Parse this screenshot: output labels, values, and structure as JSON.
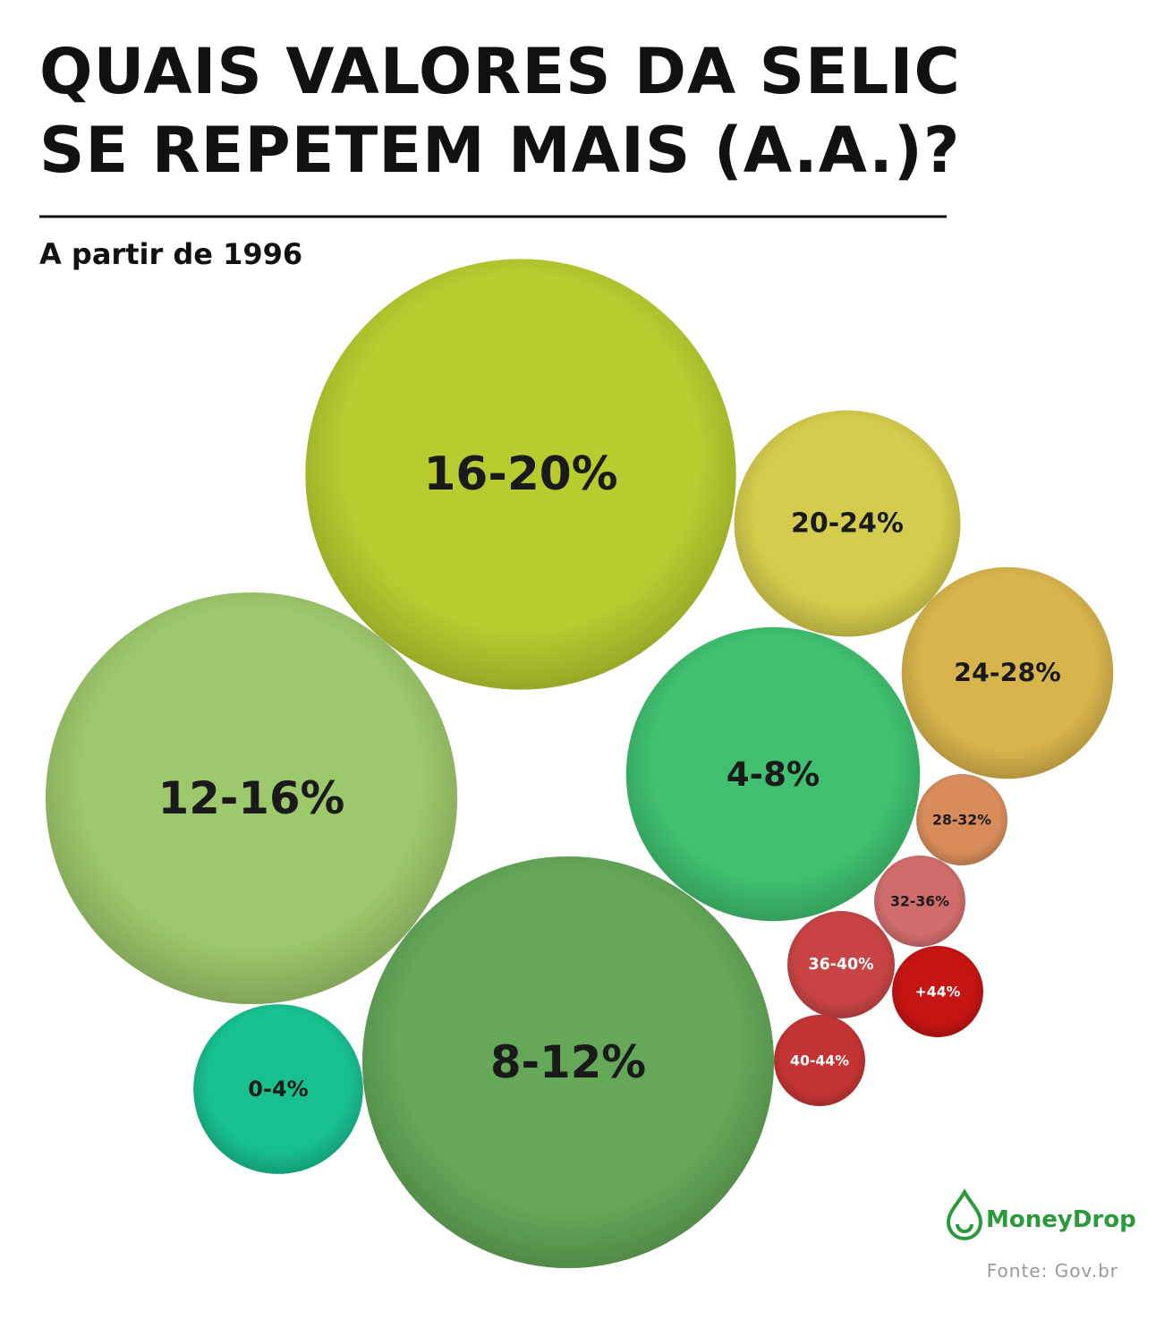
{
  "chart_data": {
    "type": "bubble",
    "title": [
      "QUAIS VALORES DA SELIC",
      "SE REPETEM MAIS (A.A.)?"
    ],
    "subtitle": "A partir de 1996",
    "categories": [
      "16-20%",
      "20-24%",
      "24-28%",
      "12-16%",
      "4-8%",
      "28-32%",
      "32-36%",
      "36-40%",
      "+44%",
      "40-44%",
      "0-4%",
      "8-12%"
    ],
    "values": [
      58,
      16,
      14,
      53,
      27,
      2.6,
      2.6,
      3.6,
      2.6,
      2.6,
      9,
      53
    ],
    "colors": [
      "#b8cc30",
      "#d4cc4c",
      "#d8b44c",
      "#9ec86c",
      "#40c070",
      "#d88c5c",
      "#d06c6c",
      "#c84444",
      "#c41414",
      "#c43434",
      "#18c090",
      "#64a858"
    ],
    "label_colors": [
      "#1a1a1a",
      "#1a1a1a",
      "#1a1a1a",
      "#1a1a1a",
      "#1a1a1a",
      "#1a1a1a",
      "#1a1a1a",
      "#ffffff",
      "#ffffff",
      "#ffffff",
      "#1a1a1a",
      "#1a1a1a"
    ],
    "brand": "MoneyDrop",
    "source": "Fonte:  Gov.br"
  }
}
